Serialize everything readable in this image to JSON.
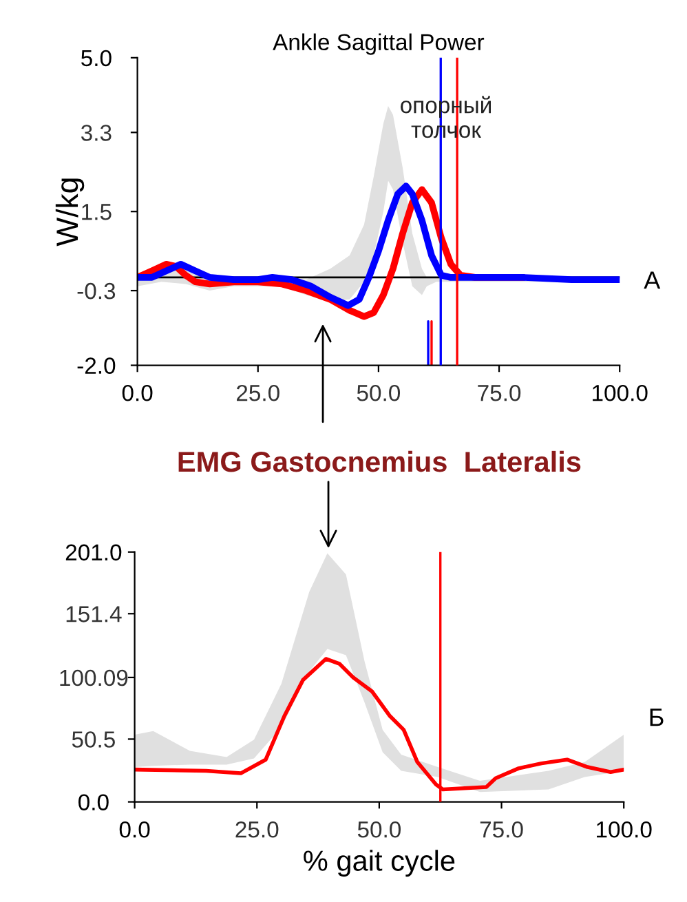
{
  "chart_data": [
    {
      "type": "line",
      "title": "Ankle Sagittal Power",
      "ylabel": "W/kg",
      "xlim": [
        0,
        100
      ],
      "ylim": [
        -2.0,
        5.0
      ],
      "xticks": [
        {
          "value": 0,
          "label": "0.0"
        },
        {
          "value": 25,
          "label": "25.0"
        },
        {
          "value": 50,
          "label": "50.0"
        },
        {
          "value": 75,
          "label": "75.0"
        },
        {
          "value": 100,
          "label": "100.0"
        }
      ],
      "yticks": [
        {
          "value": -2,
          "label": "-2.0"
        },
        {
          "value": -0.3,
          "label": "-0.3"
        },
        {
          "value": 1.5,
          "label": "1.5"
        },
        {
          "value": 3.3,
          "label": "3.3"
        },
        {
          "value": 5,
          "label": "5.0"
        }
      ],
      "grid": false,
      "legend": false,
      "annotations": [
        "A",
        {
          "text": "опорный\nтолчок",
          "x": 64,
          "y": 3.6
        }
      ],
      "ref_lines": [
        {
          "axis": "y",
          "value": 0,
          "color": "#000000"
        },
        {
          "axis": "x",
          "value": 62.9,
          "color": "#0000ff"
        },
        {
          "axis": "x",
          "value": 66.3,
          "color": "#ff0000"
        }
      ],
      "series": [
        {
          "type": "area",
          "color": "#e0e0e0",
          "x": [
            0,
            5,
            10,
            15,
            20,
            30,
            35,
            40,
            44,
            47,
            49,
            51,
            52,
            53,
            55,
            57,
            59,
            60,
            62,
            100
          ],
          "values": [
            null,
            null,
            null,
            null,
            null,
            null,
            null,
            null,
            null,
            null,
            null,
            null,
            null,
            null,
            null,
            null,
            null,
            null,
            null,
            null
          ],
          "upper": [
            0.1,
            0.2,
            0.15,
            0,
            0,
            0,
            -0.05,
            0.2,
            0.5,
            1.2,
            2.3,
            3.5,
            3.9,
            3.7,
            2.5,
            1.0,
            0.2,
            0,
            0,
            0
          ],
          "lower": [
            -0.2,
            -0.1,
            -0.15,
            -0.3,
            -0.2,
            -0.2,
            -0.4,
            -0.55,
            -0.5,
            -0.1,
            0.5,
            1.5,
            2.2,
            2.0,
            0.8,
            -0.2,
            -0.4,
            -0.2,
            -0.1,
            -0.1
          ]
        },
        {
          "type": "line",
          "color": "#ff0000",
          "x": [
            0,
            3,
            6,
            8,
            10,
            12,
            15,
            20,
            25,
            30,
            35,
            40,
            44,
            47,
            49,
            51,
            53,
            55,
            57,
            59,
            61,
            63,
            65,
            67,
            70,
            80
          ],
          "values": [
            0,
            0.15,
            0.3,
            0.25,
            0.05,
            -0.1,
            -0.15,
            -0.1,
            -0.1,
            -0.15,
            -0.3,
            -0.5,
            -0.75,
            -0.89,
            -0.8,
            -0.4,
            0.2,
            1.0,
            1.7,
            2.0,
            1.7,
            0.9,
            0.3,
            0.05,
            0,
            0
          ]
        },
        {
          "color": "#0000ff",
          "x": [
            0,
            3,
            6,
            9,
            12,
            15,
            20,
            25,
            28,
            32,
            36,
            40,
            43.7,
            46,
            48,
            50,
            52,
            54,
            55.7,
            57,
            59,
            61,
            63,
            65,
            80,
            90,
            100
          ],
          "values": [
            0,
            0,
            0.15,
            0.3,
            0.15,
            0,
            -0.05,
            -0.05,
            0,
            -0.05,
            -0.2,
            -0.45,
            -0.64,
            -0.5,
            0,
            0.6,
            1.3,
            1.9,
            2.08,
            1.9,
            1.3,
            0.5,
            0.05,
            0,
            0,
            -0.05,
            -0.05
          ]
        },
        {
          "color": "#0000ff",
          "x": [
            60.3,
            60.3
          ],
          "values": [
            -2.0,
            -1.0
          ]
        },
        {
          "color": "#ff0000",
          "x": [
            61,
            61
          ],
          "values": [
            -2.0,
            -1.0
          ]
        }
      ]
    },
    {
      "type": "line",
      "title": "EMG Gastocnemius  Lateralis",
      "xlabel": "% gait cycle",
      "xlim": [
        0,
        100
      ],
      "ylim": [
        0.0,
        201.0
      ],
      "xticks": [
        {
          "value": 0,
          "label": "0.0"
        },
        {
          "value": 25,
          "label": "25.0"
        },
        {
          "value": 50,
          "label": "50.0"
        },
        {
          "value": 75,
          "label": "75.0"
        },
        {
          "value": 100,
          "label": "100.0"
        }
      ],
      "yticks": [
        {
          "value": 0,
          "label": "0.0"
        },
        {
          "value": 50.5,
          "label": "50.5"
        },
        {
          "value": 100.09,
          "label": "100.09"
        },
        {
          "value": 151.4,
          "label": "151.4"
        },
        {
          "value": 201,
          "label": "201.0"
        }
      ],
      "grid": false,
      "legend": false,
      "annotations": [
        "Б"
      ],
      "ref_lines": [
        {
          "axis": "x",
          "value": 62.5,
          "color": "#ff0000"
        }
      ],
      "series": [
        {
          "type": "area",
          "color": "#e0e0e0",
          "x": [
            0,
            3.8,
            11.3,
            18.8,
            24.4,
            30,
            35.7,
            39.4,
            43.2,
            47,
            50.7,
            54.5,
            62,
            70.6,
            84.6,
            92,
            100
          ],
          "values": [
            null,
            null,
            null,
            null,
            null,
            null,
            null,
            null,
            null,
            null,
            null,
            null,
            null,
            null,
            null,
            null,
            null
          ],
          "upper": [
            54,
            57,
            41,
            36,
            50,
            95,
            169,
            200,
            183,
            113,
            58,
            38,
            28,
            17,
            25,
            32,
            54
          ],
          "lower": [
            28,
            29,
            30,
            30,
            35,
            60,
            105,
            123,
            118,
            80,
            40,
            25,
            20,
            8,
            10,
            20,
            25
          ]
        },
        {
          "color": "#ff0000",
          "x": [
            0,
            14.6,
            21.7,
            26.8,
            30.6,
            34.4,
            39.1,
            41.9,
            44.7,
            48.5,
            52.2,
            55,
            57.8,
            61.6,
            63,
            71.9,
            73.8,
            78.5,
            83.2,
            88.4,
            92.6,
            97.3,
            100
          ],
          "values": [
            26,
            25,
            23,
            34,
            69,
            98,
            115,
            111,
            100,
            89,
            69,
            58,
            32,
            14,
            10,
            12,
            19,
            27,
            31,
            34,
            28,
            24,
            26
          ]
        }
      ]
    }
  ]
}
